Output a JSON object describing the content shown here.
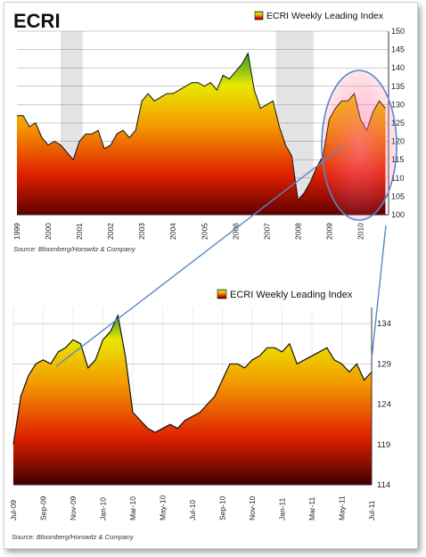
{
  "page_title": "ECRI",
  "chart_data": [
    {
      "type": "area",
      "legend": "ECRI Weekly Leading Index",
      "source": "Source: Bloomberg/Horowitz & Company",
      "title": "ECRI",
      "x_tick_labels": [
        "1999",
        "2000",
        "2001",
        "2002",
        "2003",
        "2004",
        "2005",
        "2006",
        "2007",
        "2008",
        "2009",
        "2010"
      ],
      "y_tick_labels": [
        "100",
        "105",
        "110",
        "115",
        "120",
        "125",
        "130",
        "135",
        "140",
        "145",
        "150"
      ],
      "ylim": [
        100,
        150
      ],
      "xlim": [
        1999.0,
        2010.9
      ],
      "recession_shading": [
        [
          2000.4,
          2001.1
        ],
        [
          2007.3,
          2008.5
        ]
      ],
      "colors": {
        "top": "#2e9e2e",
        "mid": "#f0e000",
        "orange": "#f08000",
        "bottom": "#b00000"
      },
      "x": [
        1999.0,
        1999.2,
        1999.4,
        1999.6,
        1999.8,
        2000.0,
        2000.2,
        2000.4,
        2000.6,
        2000.8,
        2001.0,
        2001.2,
        2001.4,
        2001.6,
        2001.8,
        2002.0,
        2002.2,
        2002.4,
        2002.6,
        2002.8,
        2003.0,
        2003.2,
        2003.4,
        2003.6,
        2003.8,
        2004.0,
        2004.2,
        2004.4,
        2004.6,
        2004.8,
        2005.0,
        2005.2,
        2005.4,
        2005.6,
        2005.8,
        2006.0,
        2006.2,
        2006.4,
        2006.6,
        2006.8,
        2007.0,
        2007.2,
        2007.4,
        2007.6,
        2007.8,
        2008.0,
        2008.2,
        2008.4,
        2008.6,
        2008.8,
        2009.0,
        2009.2,
        2009.4,
        2009.6,
        2009.8,
        2010.0,
        2010.2,
        2010.4,
        2010.6,
        2010.8
      ],
      "y": [
        127,
        127,
        124,
        125,
        121,
        119,
        120,
        119,
        117,
        115,
        120,
        122,
        122,
        123,
        118,
        119,
        122,
        123,
        121,
        123,
        131,
        133,
        131,
        132,
        133,
        133,
        134,
        135,
        136,
        136,
        135,
        136,
        134,
        138,
        137,
        139,
        141,
        144,
        134,
        129,
        130,
        131,
        124,
        119,
        116,
        104,
        106,
        109,
        113,
        116,
        126,
        129,
        131,
        131,
        133,
        126,
        123,
        128,
        131,
        129
      ]
    },
    {
      "type": "area",
      "legend": "ECRI Weekly Leading Index",
      "source": "Source: Bloomberg/Horowitz & Company",
      "x_tick_labels": [
        "Jul-09",
        "Sep-09",
        "Nov-09",
        "Jan-10",
        "Mar-10",
        "May-10",
        "Jul-10",
        "Sep-10",
        "Nov-10",
        "Jan-11",
        "Mar-11",
        "May-11",
        "Jul-11"
      ],
      "y_tick_labels": [
        "114",
        "119",
        "124",
        "129",
        "134"
      ],
      "ylim": [
        114,
        136
      ],
      "colors": {
        "top": "#2e9e2e",
        "mid": "#f0e000",
        "orange": "#f08000",
        "bottom": "#b00000"
      },
      "x_index": [
        0,
        0.5,
        1,
        1.5,
        2,
        2.5,
        3,
        3.5,
        4,
        4.5,
        5,
        5.5,
        6,
        6.5,
        7,
        7.5,
        8,
        8.5,
        9,
        9.5,
        10,
        10.5,
        11,
        11.5,
        12,
        12.5,
        13,
        13.5,
        14,
        14.5,
        15,
        15.5,
        16,
        16.5,
        17,
        17.5,
        18,
        18.5,
        19,
        19.5,
        20,
        20.5,
        21,
        21.5,
        22,
        22.5,
        23,
        23.5,
        24
      ],
      "y": [
        119,
        125,
        127.5,
        129,
        129.5,
        129,
        130.5,
        131,
        132,
        131.5,
        128.5,
        129.5,
        132,
        133,
        135,
        130,
        123,
        122,
        121,
        120.5,
        121,
        121.5,
        121,
        122,
        122.5,
        123,
        124,
        125,
        127,
        129,
        129,
        128.5,
        129.5,
        130,
        131,
        131,
        130.5,
        131.5,
        129,
        129.5,
        130,
        130.5,
        131,
        129.5,
        129,
        128,
        129,
        127,
        128
      ]
    }
  ]
}
